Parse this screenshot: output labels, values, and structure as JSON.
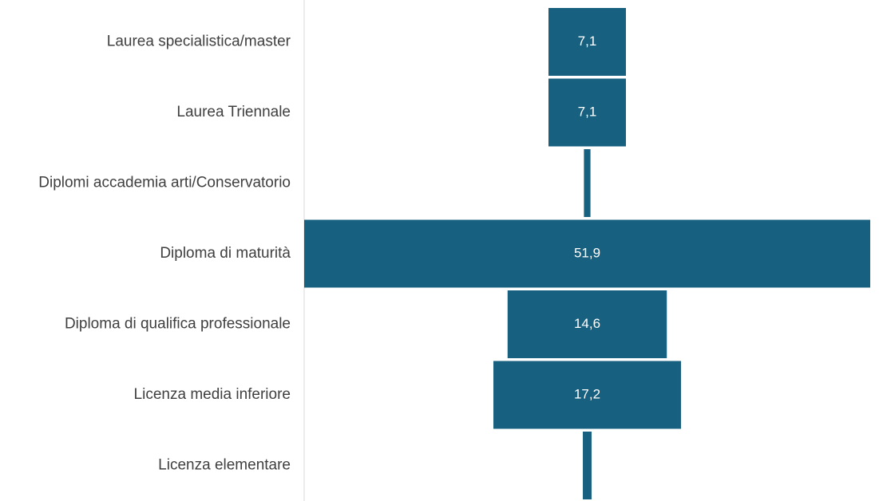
{
  "chart_data": {
    "type": "bar",
    "orientation": "horizontal-funnel",
    "categories": [
      "Laurea specialistica/master",
      "Laurea Triennale",
      "Diplomi accademia arti/Conservatorio",
      "Diploma di maturità",
      "Diploma di qualifica professionale",
      "Licenza media inferiore",
      "Licenza elementare"
    ],
    "values": [
      7.1,
      7.1,
      0.6,
      51.9,
      14.6,
      17.2,
      0.8
    ],
    "data_labels": [
      "7,1",
      "7,1",
      "",
      "51,9",
      "14,6",
      "17,2",
      ""
    ],
    "title": "",
    "xlabel": "",
    "ylabel": "",
    "xlim": [
      0,
      51.9
    ],
    "grid": false,
    "legend": "none",
    "colors": {
      "bar": "#17607f",
      "axis_line": "#d9d9d9",
      "category_text": "#404040",
      "value_text": "#ffffff"
    }
  }
}
